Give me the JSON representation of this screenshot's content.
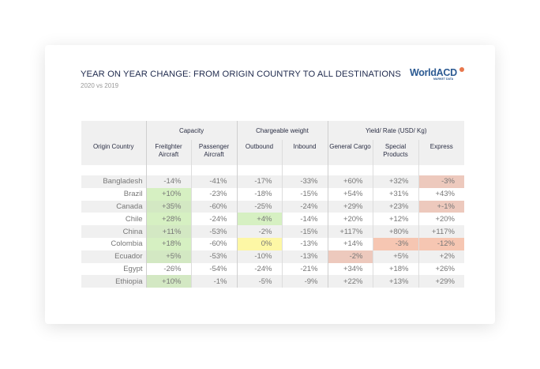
{
  "title": "YEAR ON YEAR CHANGE: FROM ORIGIN COUNTRY TO ALL DESTINATIONS",
  "subtitle": "2020 vs 2019",
  "logo": {
    "name": "WorldACD",
    "tagline": "MARKET DATA",
    "accent": "#e8774c",
    "brand": "#2c5a92"
  },
  "groups": [
    "Capacity",
    "Chargeable weight",
    "Yield/ Rate (USD/ Kg)"
  ],
  "columns": [
    "Origin Country",
    "Freitghter Aircraft",
    "Passenger Aircraft",
    "Outbound",
    "Inbound",
    "General Cargo",
    "Special Products",
    "Express"
  ],
  "rows": [
    {
      "country": "Bangladesh",
      "values": [
        "-14%",
        "-41%",
        "-17%",
        "-33%",
        "+60%",
        "+32%",
        "-3%"
      ],
      "highlight": [
        "",
        "",
        "",
        "",
        "",
        "",
        "red"
      ]
    },
    {
      "country": "Brazil",
      "values": [
        "+10%",
        "-23%",
        "-18%",
        "-15%",
        "+54%",
        "+31%",
        "+43%"
      ],
      "highlight": [
        "green",
        "",
        "",
        "",
        "",
        "",
        ""
      ]
    },
    {
      "country": "Canada",
      "values": [
        "+35%",
        "-60%",
        "-25%",
        "-24%",
        "+29%",
        "+23%",
        "+-1%"
      ],
      "highlight": [
        "green",
        "",
        "",
        "",
        "",
        "",
        "red"
      ]
    },
    {
      "country": "Chile",
      "values": [
        "+28%",
        "-24%",
        "+4%",
        "-14%",
        "+20%",
        "+12%",
        "+20%"
      ],
      "highlight": [
        "green",
        "",
        "green",
        "",
        "",
        "",
        ""
      ]
    },
    {
      "country": "China",
      "values": [
        "+11%",
        "-53%",
        "-2%",
        "-15%",
        "+117%",
        "+80%",
        "+117%"
      ],
      "highlight": [
        "green",
        "",
        "",
        "",
        "",
        "",
        ""
      ]
    },
    {
      "country": "Colombia",
      "values": [
        "+18%",
        "-60%",
        "0%",
        "-13%",
        "+14%",
        "-3%",
        "-12%"
      ],
      "highlight": [
        "green",
        "",
        "yellow",
        "",
        "",
        "salmon",
        "salmon"
      ]
    },
    {
      "country": "Ecuador",
      "values": [
        "+5%",
        "-53%",
        "-10%",
        "-13%",
        "-2%",
        "+5%",
        "+2%"
      ],
      "highlight": [
        "green",
        "",
        "",
        "",
        "red",
        "",
        ""
      ]
    },
    {
      "country": "Egypt",
      "values": [
        "-26%",
        "-54%",
        "-24%",
        "-21%",
        "+34%",
        "+18%",
        "+26%"
      ],
      "highlight": [
        "",
        "",
        "",
        "",
        "",
        "",
        ""
      ]
    },
    {
      "country": "Ethiopia",
      "values": [
        "+10%",
        "-1%",
        "-5%",
        "-9%",
        "+22%",
        "+13%",
        "+29%"
      ],
      "highlight": [
        "green",
        "",
        "",
        "",
        "",
        "",
        ""
      ]
    }
  ]
}
